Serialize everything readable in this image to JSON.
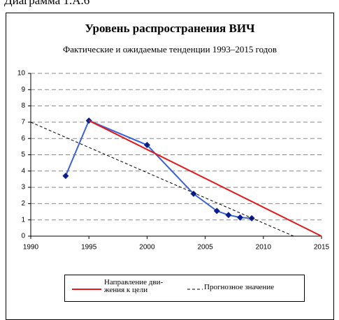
{
  "caption": "Диаграмма 1.А.6",
  "chart_data": {
    "type": "line",
    "title": "Уровень распространения ВИЧ",
    "subtitle": "Фактические и ожидаемые тенденции 1993–2015 годов",
    "xlim": [
      1990,
      2015
    ],
    "xticks": [
      1990,
      1995,
      2000,
      2005,
      2010,
      2015
    ],
    "ylim": [
      0,
      10
    ],
    "yticks": [
      0,
      1,
      2,
      3,
      4,
      5,
      6,
      7,
      8,
      9,
      10
    ],
    "grid": true,
    "legend": "bottom",
    "series": [
      {
        "x": [
          1993,
          1995,
          2000,
          2004,
          2006,
          2007,
          2008,
          2009
        ],
        "values": [
          3.7,
          7.1,
          5.6,
          2.6,
          1.55,
          1.3,
          1.15,
          1.1
        ],
        "color": "#3b62d6",
        "marker": "diamond",
        "marker_color": "#0a1f8f"
      },
      {
        "name": "Направление дви-\nжения к цели",
        "x": [
          1995,
          2015
        ],
        "values": [
          7.1,
          0
        ],
        "color": "#e31a1c"
      },
      {
        "name": "Прогнозное значение",
        "x": [
          1990,
          2012.6
        ],
        "values": [
          7,
          0
        ],
        "color": "#000000",
        "dash": true
      }
    ]
  }
}
